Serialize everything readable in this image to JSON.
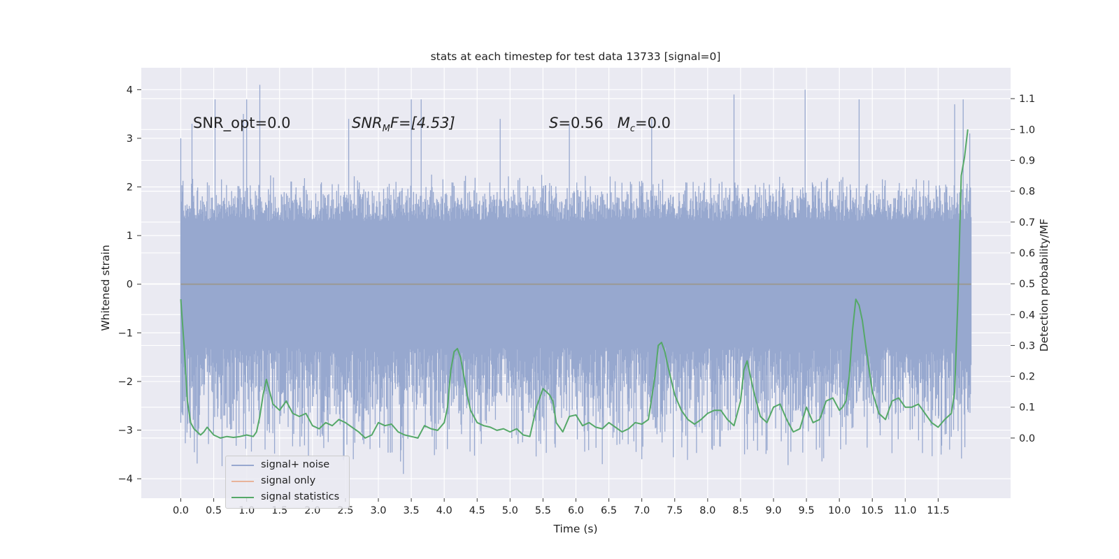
{
  "chart_data": {
    "type": "line",
    "title": "stats at each timestep for test data 13733 [signal=0]",
    "xlabel": "Time (s)",
    "ylabel_left": "Whitened strain",
    "ylabel_right": "Detection probability/MF",
    "xlim": [
      -0.6,
      12.6
    ],
    "ylim_left": [
      -4.4,
      4.45
    ],
    "ylim_right": [
      -0.195,
      1.2
    ],
    "x_ticks": [
      "0.0",
      "0.5",
      "1.0",
      "1.5",
      "2.0",
      "2.5",
      "3.0",
      "3.5",
      "4.0",
      "4.5",
      "5.0",
      "5.5",
      "6.0",
      "6.5",
      "7.0",
      "7.5",
      "8.0",
      "8.5",
      "9.0",
      "9.5",
      "10.0",
      "10.5",
      "11.0",
      "11.5"
    ],
    "y_ticks_left": [
      "4",
      "3",
      "2",
      "1",
      "0",
      "−1",
      "−2",
      "−3",
      "−4"
    ],
    "y_ticks_right": [
      "1.1",
      "1.0",
      "0.9",
      "0.8",
      "0.7",
      "0.6",
      "0.5",
      "0.4",
      "0.3",
      "0.2",
      "0.1",
      "0.0"
    ],
    "grid": true,
    "legend_position": "lower-left",
    "annotations": {
      "snr_opt": "SNR_opt=0.0",
      "snr_mf_name": "SNR",
      "snr_mf_sub": "M",
      "snr_mf_rest": "F=[4.53]",
      "s_name": "S",
      "s_value": "=0.56",
      "mc_name": "M",
      "mc_sub": "c",
      "mc_value": "=0.0"
    },
    "series": [
      {
        "name": "signal+ noise",
        "color": "#4c72b0",
        "axis": "left",
        "description_free_noise": true,
        "x_range": [
          0.0,
          12.0
        ],
        "band": {
          "dense_low": -1.3,
          "dense_high": 1.3,
          "typical_max": 2.0,
          "typical_min": -2.1,
          "peak_values": [
            {
              "x": 0.0,
              "y": 3.0
            },
            {
              "x": 0.17,
              "y": 3.3
            },
            {
              "x": 0.52,
              "y": 3.8
            },
            {
              "x": 0.95,
              "y": 3.5
            },
            {
              "x": 1.0,
              "y": 3.8
            },
            {
              "x": 1.2,
              "y": 4.1
            },
            {
              "x": 1.28,
              "y": -3.4
            },
            {
              "x": 2.55,
              "y": 3.4
            },
            {
              "x": 2.62,
              "y": -3.6
            },
            {
              "x": 3.38,
              "y": -3.9
            },
            {
              "x": 3.5,
              "y": 3.8
            },
            {
              "x": 3.65,
              "y": 3.8
            },
            {
              "x": 4.85,
              "y": 3.4
            },
            {
              "x": 5.9,
              "y": 3.3
            },
            {
              "x": 6.4,
              "y": -3.7
            },
            {
              "x": 7.0,
              "y": -3.6
            },
            {
              "x": 7.15,
              "y": 3.4
            },
            {
              "x": 8.4,
              "y": 3.9
            },
            {
              "x": 9.48,
              "y": 4.0
            },
            {
              "x": 10.1,
              "y": -3.3
            },
            {
              "x": 10.3,
              "y": 3.8
            },
            {
              "x": 11.75,
              "y": 3.7
            },
            {
              "x": 11.88,
              "y": 3.8
            },
            {
              "x": 11.98,
              "y": 3.1
            }
          ]
        }
      },
      {
        "name": "signal only",
        "color": "#dd8452",
        "axis": "left",
        "x": [
          0.0,
          12.0
        ],
        "y": [
          0.0,
          0.0
        ]
      },
      {
        "name": "signal statistics",
        "color": "#55a868",
        "axis": "right",
        "x": [
          0.0,
          0.05,
          0.1,
          0.15,
          0.2,
          0.25,
          0.3,
          0.35,
          0.4,
          0.5,
          0.6,
          0.7,
          0.8,
          0.9,
          1.0,
          1.1,
          1.15,
          1.2,
          1.25,
          1.3,
          1.4,
          1.5,
          1.6,
          1.7,
          1.8,
          1.9,
          2.0,
          2.1,
          2.2,
          2.3,
          2.4,
          2.5,
          2.6,
          2.7,
          2.8,
          2.9,
          3.0,
          3.1,
          3.2,
          3.3,
          3.4,
          3.5,
          3.6,
          3.7,
          3.8,
          3.9,
          4.0,
          4.05,
          4.1,
          4.15,
          4.2,
          4.25,
          4.3,
          4.35,
          4.4,
          4.45,
          4.5,
          4.6,
          4.7,
          4.8,
          4.9,
          5.0,
          5.1,
          5.2,
          5.3,
          5.4,
          5.5,
          5.55,
          5.6,
          5.65,
          5.7,
          5.8,
          5.9,
          6.0,
          6.1,
          6.2,
          6.3,
          6.4,
          6.5,
          6.6,
          6.7,
          6.8,
          6.9,
          7.0,
          7.1,
          7.2,
          7.25,
          7.3,
          7.35,
          7.4,
          7.5,
          7.6,
          7.7,
          7.8,
          7.9,
          8.0,
          8.1,
          8.2,
          8.3,
          8.4,
          8.5,
          8.55,
          8.6,
          8.65,
          8.7,
          8.8,
          8.9,
          9.0,
          9.1,
          9.2,
          9.3,
          9.4,
          9.5,
          9.6,
          9.7,
          9.8,
          9.9,
          10.0,
          10.05,
          10.1,
          10.15,
          10.2,
          10.25,
          10.3,
          10.35,
          10.4,
          10.5,
          10.6,
          10.7,
          10.8,
          10.9,
          11.0,
          11.1,
          11.2,
          11.3,
          11.4,
          11.5,
          11.6,
          11.7,
          11.75,
          11.8,
          11.85,
          11.9,
          11.95
        ],
        "y": [
          0.45,
          0.3,
          0.12,
          0.05,
          0.03,
          0.02,
          0.01,
          0.02,
          0.035,
          0.01,
          0.0,
          0.005,
          0.002,
          0.005,
          0.01,
          0.005,
          0.02,
          0.07,
          0.14,
          0.19,
          0.11,
          0.09,
          0.12,
          0.08,
          0.07,
          0.08,
          0.04,
          0.03,
          0.05,
          0.04,
          0.06,
          0.05,
          0.035,
          0.02,
          0.0,
          0.01,
          0.05,
          0.04,
          0.045,
          0.02,
          0.01,
          0.005,
          0.0,
          0.04,
          0.03,
          0.025,
          0.05,
          0.1,
          0.22,
          0.28,
          0.29,
          0.26,
          0.2,
          0.14,
          0.09,
          0.07,
          0.05,
          0.04,
          0.035,
          0.025,
          0.03,
          0.02,
          0.03,
          0.01,
          0.005,
          0.1,
          0.16,
          0.15,
          0.14,
          0.12,
          0.05,
          0.02,
          0.07,
          0.075,
          0.04,
          0.05,
          0.035,
          0.03,
          0.05,
          0.035,
          0.02,
          0.03,
          0.05,
          0.045,
          0.06,
          0.2,
          0.3,
          0.31,
          0.28,
          0.23,
          0.14,
          0.09,
          0.06,
          0.045,
          0.06,
          0.08,
          0.09,
          0.09,
          0.06,
          0.04,
          0.12,
          0.22,
          0.25,
          0.2,
          0.15,
          0.07,
          0.05,
          0.1,
          0.11,
          0.06,
          0.02,
          0.03,
          0.1,
          0.05,
          0.06,
          0.12,
          0.13,
          0.09,
          0.1,
          0.12,
          0.2,
          0.35,
          0.45,
          0.43,
          0.38,
          0.3,
          0.15,
          0.08,
          0.06,
          0.12,
          0.13,
          0.1,
          0.1,
          0.11,
          0.08,
          0.05,
          0.035,
          0.06,
          0.08,
          0.15,
          0.45,
          0.85,
          0.91,
          1.0
        ]
      }
    ]
  }
}
